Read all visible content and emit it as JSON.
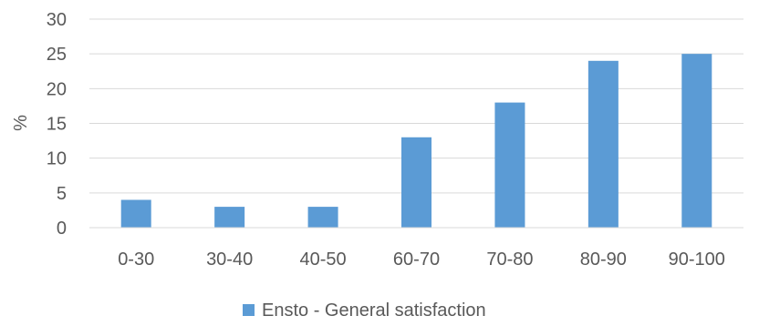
{
  "chart_data": {
    "type": "bar",
    "title": "",
    "xlabel": "",
    "ylabel": "%",
    "ylim": [
      0,
      30
    ],
    "yticks": [
      0,
      5,
      10,
      15,
      20,
      25,
      30
    ],
    "grid": true,
    "legend_position": "bottom",
    "categories": [
      "0-30",
      "30-40",
      "40-50",
      "60-70",
      "70-80",
      "80-90",
      "90-100"
    ],
    "series": [
      {
        "name": "Ensto - General satisfaction",
        "color": "#5b9bd5",
        "values": [
          4,
          3,
          3,
          13,
          18,
          24,
          25
        ]
      }
    ]
  }
}
